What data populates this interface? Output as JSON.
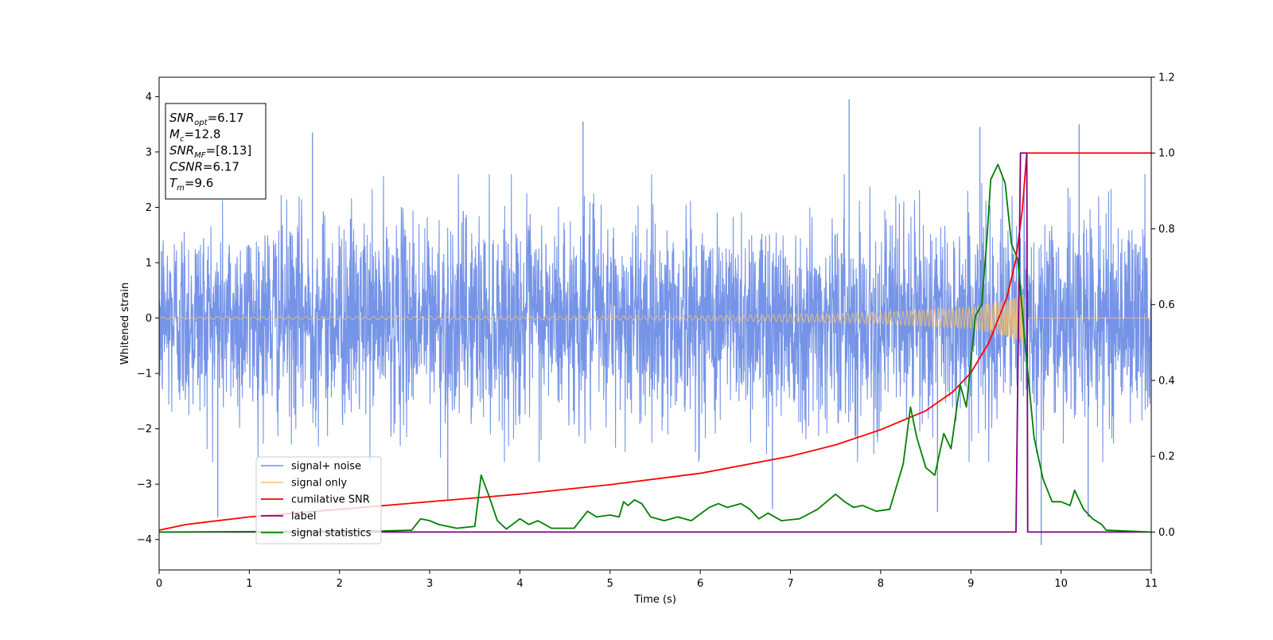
{
  "chart_data": {
    "type": "line",
    "xlabel": "Time (s)",
    "ylabel": "Whitened strain",
    "xlim": [
      0,
      11
    ],
    "ylim_left": [
      -4.55,
      4.35
    ],
    "ylim_right": [
      -0.1,
      1.2
    ],
    "x_ticks": [
      0,
      1,
      2,
      3,
      4,
      5,
      6,
      7,
      8,
      9,
      10,
      11
    ],
    "x_tick_labels": [
      "0",
      "1",
      "2",
      "3",
      "4",
      "5",
      "6",
      "7",
      "8",
      "9",
      "10",
      "11"
    ],
    "y_left_ticks": [
      -4,
      -3,
      -2,
      -1,
      0,
      1,
      2,
      3,
      4
    ],
    "y_left_tick_labels": [
      "−4",
      "−3",
      "−2",
      "−1",
      "0",
      "1",
      "2",
      "3",
      "4"
    ],
    "y_right_ticks": [
      0.0,
      0.2,
      0.4,
      0.6,
      0.8,
      1.0,
      1.2
    ],
    "y_right_tick_labels": [
      "0.0",
      "0.2",
      "0.4",
      "0.6",
      "0.8",
      "1.0",
      "1.2"
    ],
    "grid": false,
    "legend_placement": "lower-left",
    "annotation": {
      "lines": [
        {
          "base": "SNR",
          "sub": "opt",
          "value": "=6.17"
        },
        {
          "base": "M",
          "sub": "c",
          "value": "=12.8"
        },
        {
          "base": "SNR",
          "sub": "MF",
          "value": "=[8.13]"
        },
        {
          "base": "CSNR",
          "sub": "",
          "value": "=6.17"
        },
        {
          "base": "T",
          "sub": "m",
          "value": "=9.6"
        }
      ]
    },
    "series": [
      {
        "name": "signal+ noise",
        "axis": "left",
        "color": "#6f8ee6",
        "description": "dense gaussian noise band, approx within [-2.6, 2.6] with spikes up to 3.95 and down to -4.1",
        "noise_band": [
          -2.6,
          2.6
        ],
        "peaks": [
          {
            "x": 0.65,
            "y": -3.6
          },
          {
            "x": 1.7,
            "y": 3.35
          },
          {
            "x": 4.7,
            "y": 3.55
          },
          {
            "x": 7.65,
            "y": 3.95
          },
          {
            "x": 9.1,
            "y": 3.45
          },
          {
            "x": 9.78,
            "y": -4.1
          },
          {
            "x": 10.2,
            "y": 3.5
          },
          {
            "x": 10.3,
            "y": -3.6
          },
          {
            "x": 8.63,
            "y": -3.5
          },
          {
            "x": 6.8,
            "y": -3.45
          },
          {
            "x": 3.2,
            "y": -3.3
          }
        ]
      },
      {
        "name": "signal only",
        "axis": "left",
        "color": "#f5c16b",
        "description": "chirp oscillating around 0, amplitude growing to ~0.45 at merger t=9.6, then 0",
        "envelope": [
          {
            "x": 0,
            "y": 0.02
          },
          {
            "x": 6.0,
            "y": 0.04
          },
          {
            "x": 8.0,
            "y": 0.1
          },
          {
            "x": 9.0,
            "y": 0.2
          },
          {
            "x": 9.4,
            "y": 0.33
          },
          {
            "x": 9.6,
            "y": 0.45
          }
        ],
        "end_x": 9.6
      },
      {
        "name": "cumilative SNR",
        "axis": "right",
        "color": "#ff0000",
        "points": [
          {
            "x": 0,
            "y": 0.005
          },
          {
            "x": 0.3,
            "y": 0.02
          },
          {
            "x": 1,
            "y": 0.04
          },
          {
            "x": 2,
            "y": 0.06
          },
          {
            "x": 3,
            "y": 0.08
          },
          {
            "x": 4,
            "y": 0.1
          },
          {
            "x": 5,
            "y": 0.125
          },
          {
            "x": 6,
            "y": 0.155
          },
          {
            "x": 7,
            "y": 0.2
          },
          {
            "x": 7.5,
            "y": 0.23
          },
          {
            "x": 8,
            "y": 0.27
          },
          {
            "x": 8.5,
            "y": 0.32
          },
          {
            "x": 8.8,
            "y": 0.37
          },
          {
            "x": 9.0,
            "y": 0.42
          },
          {
            "x": 9.2,
            "y": 0.5
          },
          {
            "x": 9.4,
            "y": 0.62
          },
          {
            "x": 9.5,
            "y": 0.72
          },
          {
            "x": 9.57,
            "y": 0.85
          },
          {
            "x": 9.62,
            "y": 1.0
          },
          {
            "x": 11,
            "y": 1.0
          }
        ]
      },
      {
        "name": "label",
        "axis": "right",
        "color": "#800080",
        "points": [
          {
            "x": 0,
            "y": 0.0
          },
          {
            "x": 9.5,
            "y": 0.0
          },
          {
            "x": 9.55,
            "y": 1.0
          },
          {
            "x": 9.62,
            "y": 1.0
          },
          {
            "x": 9.63,
            "y": 0.0
          },
          {
            "x": 11,
            "y": 0.0
          }
        ]
      },
      {
        "name": "signal statistics",
        "axis": "right",
        "color": "#008000",
        "points": [
          {
            "x": 0,
            "y": 0.0
          },
          {
            "x": 2.5,
            "y": 0.003
          },
          {
            "x": 2.8,
            "y": 0.005
          },
          {
            "x": 2.9,
            "y": 0.035
          },
          {
            "x": 3.0,
            "y": 0.03
          },
          {
            "x": 3.1,
            "y": 0.02
          },
          {
            "x": 3.3,
            "y": 0.01
          },
          {
            "x": 3.5,
            "y": 0.015
          },
          {
            "x": 3.57,
            "y": 0.15
          },
          {
            "x": 3.65,
            "y": 0.1
          },
          {
            "x": 3.75,
            "y": 0.03
          },
          {
            "x": 3.85,
            "y": 0.008
          },
          {
            "x": 4.0,
            "y": 0.035
          },
          {
            "x": 4.1,
            "y": 0.02
          },
          {
            "x": 4.2,
            "y": 0.03
          },
          {
            "x": 4.35,
            "y": 0.01
          },
          {
            "x": 4.6,
            "y": 0.01
          },
          {
            "x": 4.75,
            "y": 0.055
          },
          {
            "x": 4.85,
            "y": 0.04
          },
          {
            "x": 5.0,
            "y": 0.045
          },
          {
            "x": 5.1,
            "y": 0.04
          },
          {
            "x": 5.15,
            "y": 0.08
          },
          {
            "x": 5.2,
            "y": 0.07
          },
          {
            "x": 5.27,
            "y": 0.085
          },
          {
            "x": 5.35,
            "y": 0.075
          },
          {
            "x": 5.45,
            "y": 0.04
          },
          {
            "x": 5.6,
            "y": 0.03
          },
          {
            "x": 5.75,
            "y": 0.04
          },
          {
            "x": 5.9,
            "y": 0.03
          },
          {
            "x": 6.1,
            "y": 0.065
          },
          {
            "x": 6.2,
            "y": 0.075
          },
          {
            "x": 6.3,
            "y": 0.065
          },
          {
            "x": 6.45,
            "y": 0.075
          },
          {
            "x": 6.55,
            "y": 0.06
          },
          {
            "x": 6.65,
            "y": 0.035
          },
          {
            "x": 6.75,
            "y": 0.05
          },
          {
            "x": 6.9,
            "y": 0.03
          },
          {
            "x": 7.1,
            "y": 0.035
          },
          {
            "x": 7.3,
            "y": 0.06
          },
          {
            "x": 7.5,
            "y": 0.1
          },
          {
            "x": 7.6,
            "y": 0.08
          },
          {
            "x": 7.7,
            "y": 0.065
          },
          {
            "x": 7.8,
            "y": 0.07
          },
          {
            "x": 7.95,
            "y": 0.055
          },
          {
            "x": 8.1,
            "y": 0.06
          },
          {
            "x": 8.25,
            "y": 0.18
          },
          {
            "x": 8.33,
            "y": 0.33
          },
          {
            "x": 8.4,
            "y": 0.25
          },
          {
            "x": 8.5,
            "y": 0.17
          },
          {
            "x": 8.6,
            "y": 0.15
          },
          {
            "x": 8.7,
            "y": 0.26
          },
          {
            "x": 8.78,
            "y": 0.22
          },
          {
            "x": 8.88,
            "y": 0.39
          },
          {
            "x": 8.95,
            "y": 0.33
          },
          {
            "x": 9.05,
            "y": 0.57
          },
          {
            "x": 9.12,
            "y": 0.6
          },
          {
            "x": 9.18,
            "y": 0.78
          },
          {
            "x": 9.22,
            "y": 0.93
          },
          {
            "x": 9.3,
            "y": 0.97
          },
          {
            "x": 9.38,
            "y": 0.92
          },
          {
            "x": 9.45,
            "y": 0.76
          },
          {
            "x": 9.52,
            "y": 0.72
          },
          {
            "x": 9.6,
            "y": 0.5
          },
          {
            "x": 9.7,
            "y": 0.25
          },
          {
            "x": 9.8,
            "y": 0.14
          },
          {
            "x": 9.9,
            "y": 0.08
          },
          {
            "x": 10.0,
            "y": 0.08
          },
          {
            "x": 10.1,
            "y": 0.07
          },
          {
            "x": 10.15,
            "y": 0.11
          },
          {
            "x": 10.25,
            "y": 0.06
          },
          {
            "x": 10.35,
            "y": 0.035
          },
          {
            "x": 10.45,
            "y": 0.02
          },
          {
            "x": 10.5,
            "y": 0.005
          },
          {
            "x": 11,
            "y": 0.0
          }
        ]
      }
    ]
  }
}
